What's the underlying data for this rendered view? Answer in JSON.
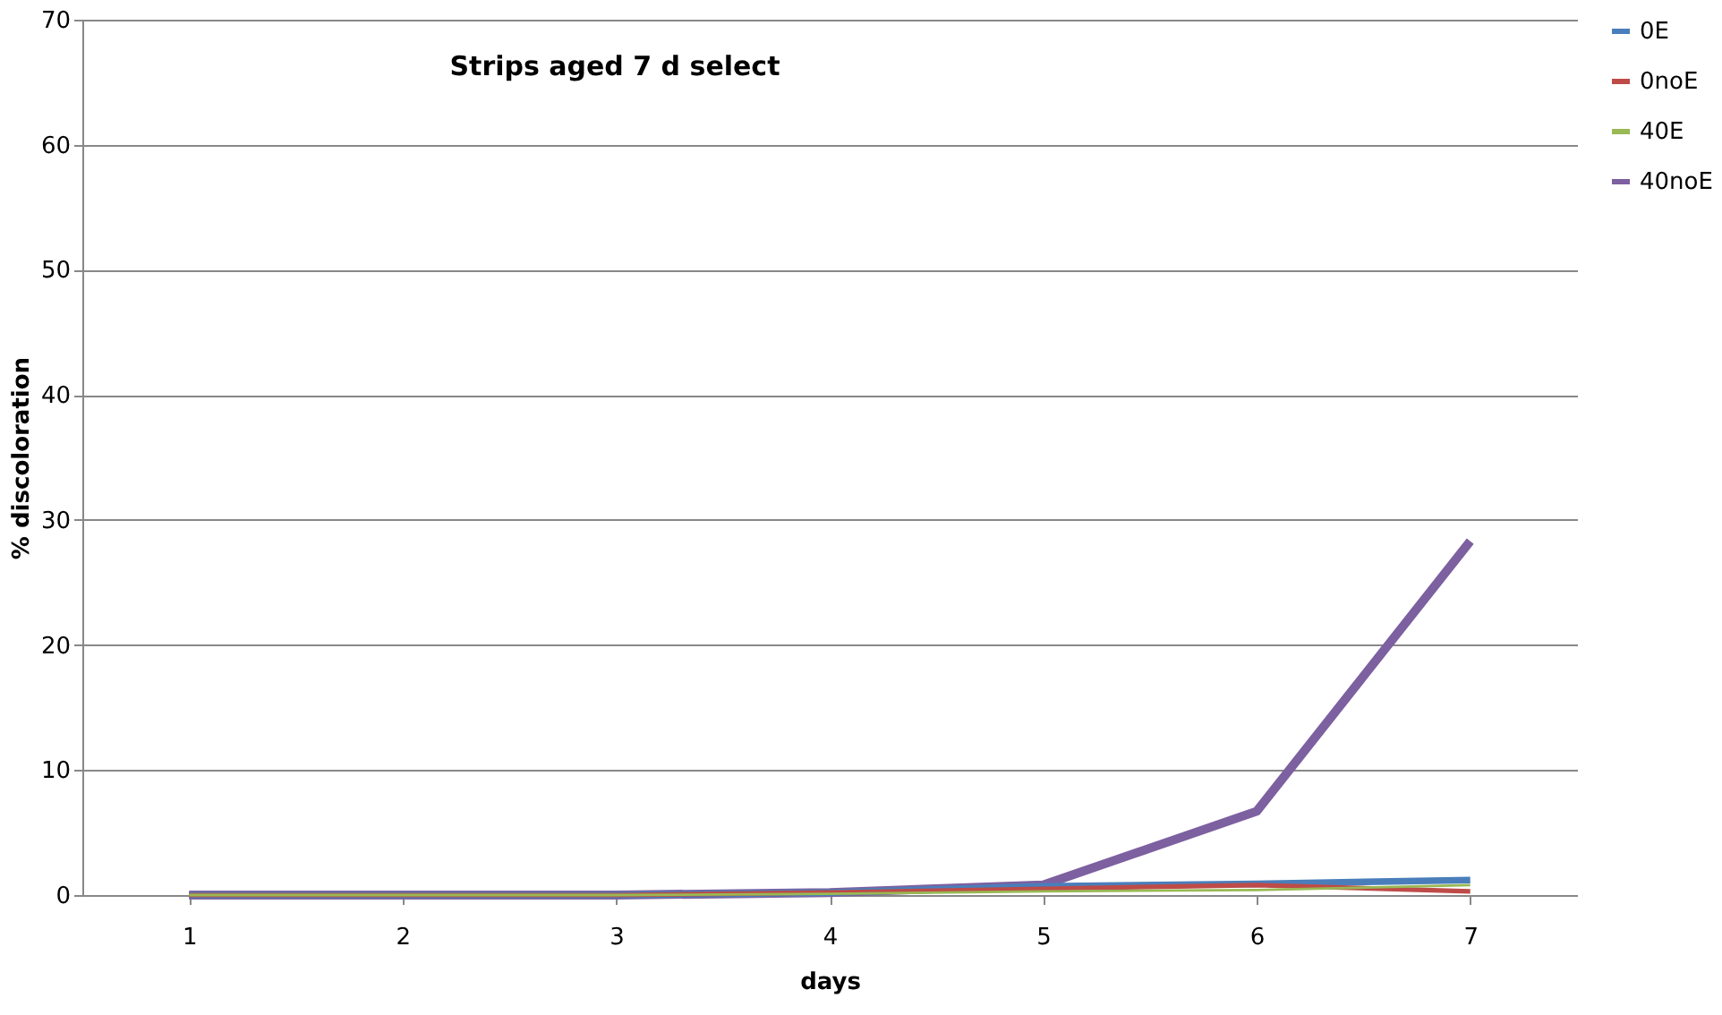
{
  "chart_data": {
    "type": "line",
    "title": "Strips aged 7 d select",
    "xlabel": "days",
    "ylabel": "% discoloration",
    "categories": [
      "1",
      "2",
      "3",
      "4",
      "5",
      "6",
      "7"
    ],
    "series": [
      {
        "name": "0E",
        "color": "#4a7ebb",
        "values": [
          0,
          0,
          0,
          0.2,
          0.7,
          0.9,
          1.2
        ]
      },
      {
        "name": "0noE",
        "color": "#be4b48",
        "values": [
          0,
          0,
          0,
          0.2,
          0.5,
          0.8,
          0.3
        ]
      },
      {
        "name": "40E",
        "color": "#98b954",
        "values": [
          0,
          0,
          0,
          0.1,
          0.3,
          0.4,
          0.8
        ]
      },
      {
        "name": "40noE",
        "color": "#7d60a0",
        "values": [
          0,
          0,
          0,
          0.2,
          0.8,
          6.7,
          28.3
        ]
      }
    ],
    "ylim": [
      0,
      70
    ],
    "yticks": [
      0,
      10,
      20,
      30,
      40,
      50,
      60,
      70
    ],
    "grid": "y",
    "legend": "right",
    "marker": "none",
    "line_style": "solid"
  }
}
